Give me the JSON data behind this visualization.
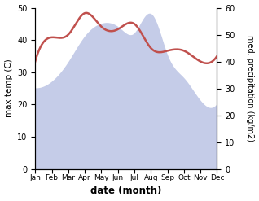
{
  "months": [
    "Jan",
    "Feb",
    "Mar",
    "Apr",
    "May",
    "Jun",
    "Jul",
    "Aug",
    "Sep",
    "Oct",
    "Nov",
    "Dec"
  ],
  "temp_values": [
    25,
    27,
    33,
    41,
    45,
    44,
    42,
    48,
    35,
    28,
    21,
    20
  ],
  "precip_values": [
    40,
    49,
    50,
    58,
    53,
    52,
    54,
    45,
    44,
    44,
    40,
    42
  ],
  "temp_fill_color": "#c5cce8",
  "precip_color": "#c0504d",
  "ylim_temp": [
    0,
    50
  ],
  "ylim_precip": [
    0,
    60
  ],
  "yticks_temp": [
    0,
    10,
    20,
    30,
    40,
    50
  ],
  "yticks_precip": [
    0,
    10,
    20,
    30,
    40,
    50,
    60
  ],
  "ylabel_left": "max temp (C)",
  "ylabel_right": "med. precipitation (kg/m2)",
  "xlabel": "date (month)",
  "figsize": [
    3.18,
    2.47
  ],
  "dpi": 100
}
